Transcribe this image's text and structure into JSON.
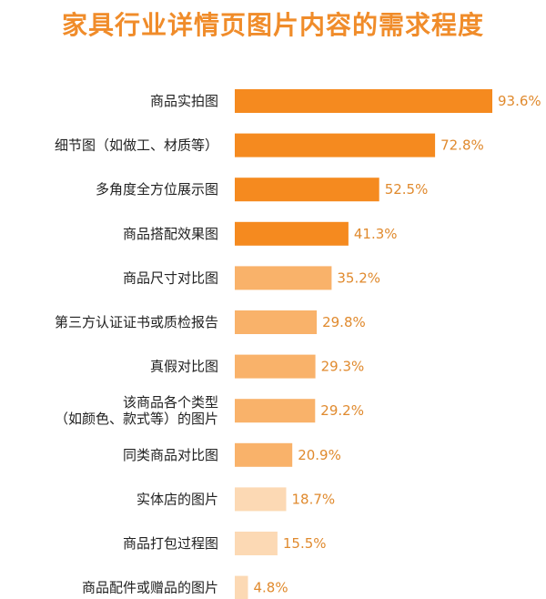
{
  "colors": {
    "title": "#f08c2a",
    "label": "#222222",
    "value_label": "#e08a2e",
    "bar_dark": "#f58a1f",
    "bar_mid": "#f9b26a",
    "bar_light": "#fcd9b4"
  },
  "chart_data": {
    "type": "bar",
    "orientation": "horizontal",
    "title": "家具行业详情页图片内容的需求程度",
    "xlabel": "",
    "ylabel": "",
    "xlim": [
      0,
      100
    ],
    "grid": false,
    "legend": "none",
    "value_suffix": "%",
    "categories": [
      [
        "商品实拍图"
      ],
      [
        "细节图（如做工、材质等）"
      ],
      [
        "多角度全方位展示图"
      ],
      [
        "商品搭配效果图"
      ],
      [
        "商品尺寸对比图"
      ],
      [
        "第三方认证证书或质检报告"
      ],
      [
        "真假对比图"
      ],
      [
        "该商品各个类型",
        "（如颜色、款式等）的图片"
      ],
      [
        "同类商品对比图"
      ],
      [
        "实体店的图片"
      ],
      [
        "商品打包过程图"
      ],
      [
        "商品配件或赠品的图片"
      ]
    ],
    "values": [
      93.6,
      72.8,
      52.5,
      41.3,
      35.2,
      29.8,
      29.3,
      29.2,
      20.9,
      18.7,
      15.5,
      4.8
    ],
    "value_labels": [
      "93.6%",
      "72.8%",
      "52.5%",
      "41.3%",
      "35.2%",
      "29.8%",
      "29.3%",
      "29.2%",
      "20.9%",
      "18.7%",
      "15.5%",
      "4.8%"
    ],
    "bar_shades": [
      "dark",
      "dark",
      "dark",
      "dark",
      "mid",
      "mid",
      "mid",
      "mid",
      "mid",
      "light",
      "light",
      "light"
    ]
  }
}
